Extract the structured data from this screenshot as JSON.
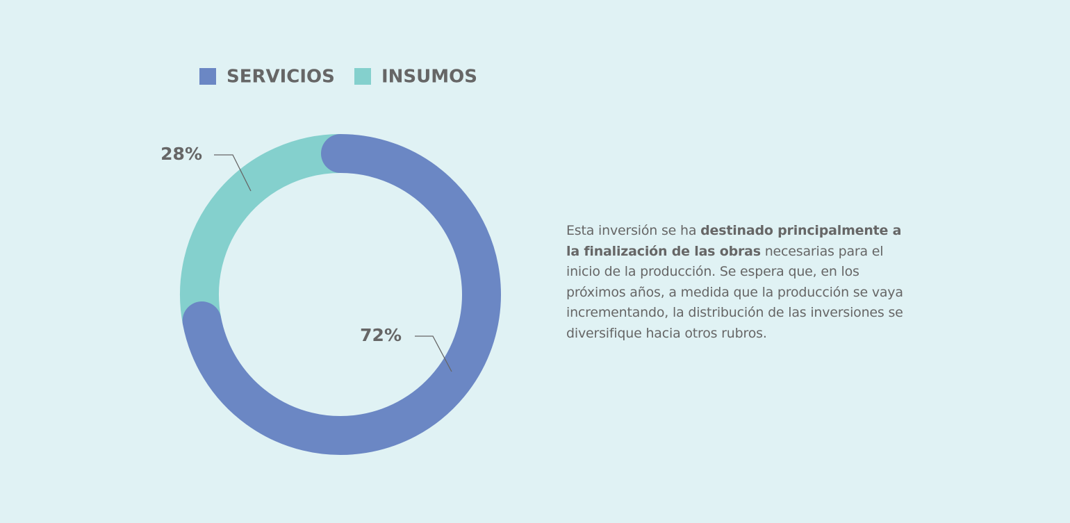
{
  "chart_data": {
    "type": "pie",
    "donut": true,
    "categories": [
      "SERVICIOS",
      "INSUMOS"
    ],
    "values": [
      72,
      28
    ],
    "value_labels": [
      "72%",
      "28%"
    ],
    "colors": [
      "#6b87c4",
      "#84d0cd"
    ]
  },
  "description": [
    {
      "text": "Esta inversión se ha ",
      "bold": false
    },
    {
      "text": "destinado principalmente a la finalización de las obras",
      "bold": true
    },
    {
      "text": " necesarias para el inicio de la producción. Se espera que, en los próximos años, a medida que la producción se vaya incrementando, la distribución de las inversiones se diversifique hacia otros rubros.",
      "bold": false
    }
  ]
}
